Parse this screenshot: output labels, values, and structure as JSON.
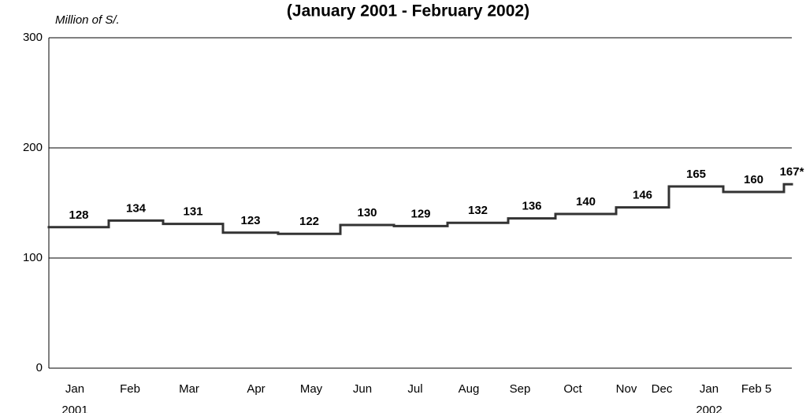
{
  "chart_data": {
    "type": "step",
    "title": "(January 2001 - February 2002)",
    "y_label": "Million of S/.",
    "categories": [
      [
        "Jan",
        "2001"
      ],
      [
        "Feb"
      ],
      [
        "Mar"
      ],
      [
        "Apr"
      ],
      [
        "May"
      ],
      [
        "Jun"
      ],
      [
        "Jul"
      ],
      [
        "Aug"
      ],
      [
        "Sep"
      ],
      [
        "Oct"
      ],
      [
        "Nov"
      ],
      [
        "Dec"
      ],
      [
        "Jan",
        "2002"
      ],
      [
        "Feb 5"
      ]
    ],
    "values": [
      128,
      134,
      131,
      123,
      122,
      130,
      129,
      132,
      136,
      140,
      146,
      165,
      160,
      167
    ],
    "value_labels": [
      "128",
      "134",
      "131",
      "123",
      "122",
      "130",
      "129",
      "132",
      "136",
      "140",
      "146",
      "165",
      "160",
      "167*"
    ],
    "color": "#333333",
    "ylim": [
      0,
      300
    ],
    "yticks": [
      0,
      100,
      200,
      300
    ],
    "grid": true
  }
}
